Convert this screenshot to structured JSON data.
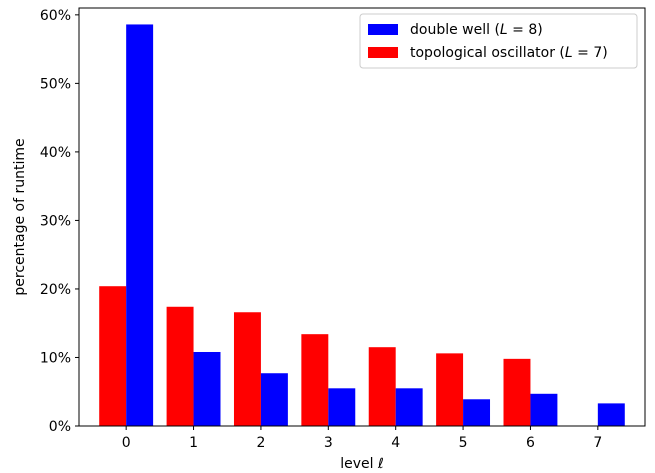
{
  "chart_data": {
    "type": "bar",
    "xlabel": "level ℓ",
    "ylabel": "percentage of runtime",
    "categories": [
      "0",
      "1",
      "2",
      "3",
      "4",
      "5",
      "6",
      "7"
    ],
    "ylim": [
      0,
      61
    ],
    "yticks": [
      0,
      10,
      20,
      30,
      40,
      50,
      60
    ],
    "ytick_labels": [
      "0%",
      "10%",
      "20%",
      "30%",
      "40%",
      "50%",
      "60%"
    ],
    "grid": false,
    "legend_position": "top-right",
    "series": [
      {
        "name": "topological oscillator",
        "label_var": "L",
        "label_val": "7",
        "color": "#ff0000",
        "values": [
          20.4,
          17.4,
          16.6,
          13.4,
          11.5,
          10.6,
          9.8,
          null
        ]
      },
      {
        "name": "double well",
        "label_var": "L",
        "label_val": "8",
        "color": "#0000ff",
        "values": [
          58.6,
          10.8,
          7.7,
          5.5,
          5.5,
          3.9,
          4.7,
          3.3
        ]
      }
    ]
  }
}
